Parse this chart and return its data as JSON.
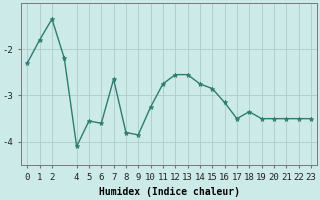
{
  "x": [
    0,
    1,
    2,
    3,
    4,
    5,
    6,
    7,
    8,
    9,
    10,
    11,
    12,
    13,
    14,
    15,
    16,
    17,
    18,
    19,
    20,
    21,
    22,
    23
  ],
  "y": [
    -2.3,
    -1.8,
    -1.35,
    -2.2,
    -4.1,
    -3.55,
    -3.6,
    -2.65,
    -3.8,
    -3.85,
    -3.25,
    -2.75,
    -2.55,
    -2.55,
    -2.75,
    -2.85,
    -3.15,
    -3.5,
    -3.35,
    -3.5,
    -3.5,
    -3.5,
    -3.5,
    -3.5
  ],
  "line_color": "#2e7d6e",
  "marker": "*",
  "bg_color": "#cceae7",
  "grid_color": "#aaccca",
  "xlabel": "Humidex (Indice chaleur)",
  "ylim": [
    -4.5,
    -1.0
  ],
  "xlim": [
    -0.5,
    23.5
  ],
  "yticks": [
    -4,
    -3,
    -2
  ],
  "xticks": [
    0,
    1,
    2,
    4,
    5,
    6,
    7,
    8,
    9,
    10,
    11,
    12,
    13,
    14,
    15,
    16,
    17,
    18,
    19,
    20,
    21,
    22,
    23
  ],
  "xlabel_fontsize": 7,
  "tick_fontsize": 6.5,
  "markersize": 3.5,
  "linewidth": 1.0
}
